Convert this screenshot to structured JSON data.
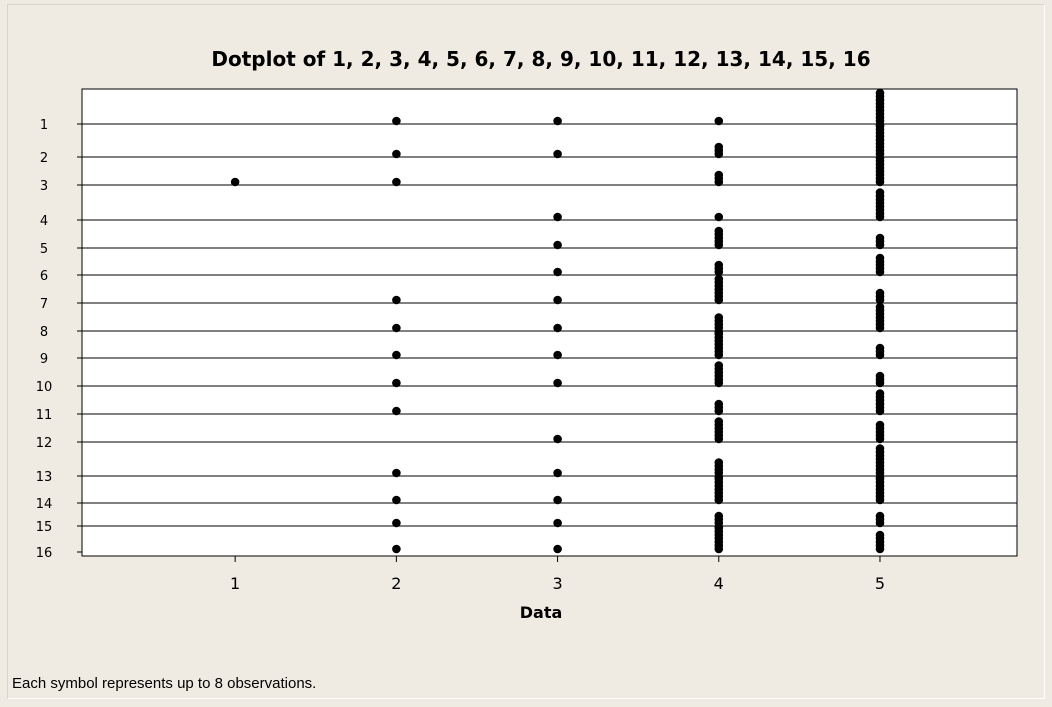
{
  "footnote": "Each symbol represents up to 8 observations.",
  "chart_data": {
    "type": "dotplot",
    "title": "Dotplot of 1, 2, 3, 4, 5, 6, 7, 8, 9, 10, 11, 12, 13, 14, 15, 16",
    "xlabel": "Data",
    "x_ticks": [
      1,
      2,
      3,
      4,
      5
    ],
    "xlim": [
      0.05,
      5.85
    ],
    "grid": false,
    "series": [
      {
        "name": "1",
        "symbol_counts": {
          "2": 1,
          "3": 1,
          "4": 1,
          "5": 9
        }
      },
      {
        "name": "2",
        "symbol_counts": {
          "2": 1,
          "3": 1,
          "4": 3,
          "5": 10
        }
      },
      {
        "name": "3",
        "symbol_counts": {
          "1": 1,
          "2": 1,
          "4": 3,
          "5": 8
        }
      },
      {
        "name": "4",
        "symbol_counts": {
          "3": 1,
          "4": 1,
          "5": 8
        }
      },
      {
        "name": "5",
        "symbol_counts": {
          "3": 1,
          "4": 5,
          "5": 3
        }
      },
      {
        "name": "6",
        "symbol_counts": {
          "3": 1,
          "4": 3,
          "5": 5
        }
      },
      {
        "name": "7",
        "symbol_counts": {
          "2": 1,
          "3": 1,
          "4": 7,
          "5": 3
        }
      },
      {
        "name": "8",
        "symbol_counts": {
          "2": 1,
          "3": 1,
          "4": 4,
          "5": 7
        }
      },
      {
        "name": "9",
        "symbol_counts": {
          "2": 1,
          "3": 1,
          "4": 8,
          "5": 3
        }
      },
      {
        "name": "10",
        "symbol_counts": {
          "2": 1,
          "3": 1,
          "4": 6,
          "5": 3
        }
      },
      {
        "name": "11",
        "symbol_counts": {
          "2": 1,
          "4": 3,
          "5": 6
        }
      },
      {
        "name": "12",
        "symbol_counts": {
          "3": 1,
          "4": 6,
          "5": 5
        }
      },
      {
        "name": "13",
        "symbol_counts": {
          "2": 1,
          "3": 1,
          "4": 4,
          "5": 8
        }
      },
      {
        "name": "14",
        "symbol_counts": {
          "2": 1,
          "3": 1,
          "4": 8,
          "5": 8
        }
      },
      {
        "name": "15",
        "symbol_counts": {
          "2": 1,
          "3": 1,
          "4": 3,
          "5": 3
        }
      },
      {
        "name": "16",
        "symbol_counts": {
          "2": 1,
          "3": 1,
          "4": 8,
          "5": 5
        }
      }
    ]
  }
}
